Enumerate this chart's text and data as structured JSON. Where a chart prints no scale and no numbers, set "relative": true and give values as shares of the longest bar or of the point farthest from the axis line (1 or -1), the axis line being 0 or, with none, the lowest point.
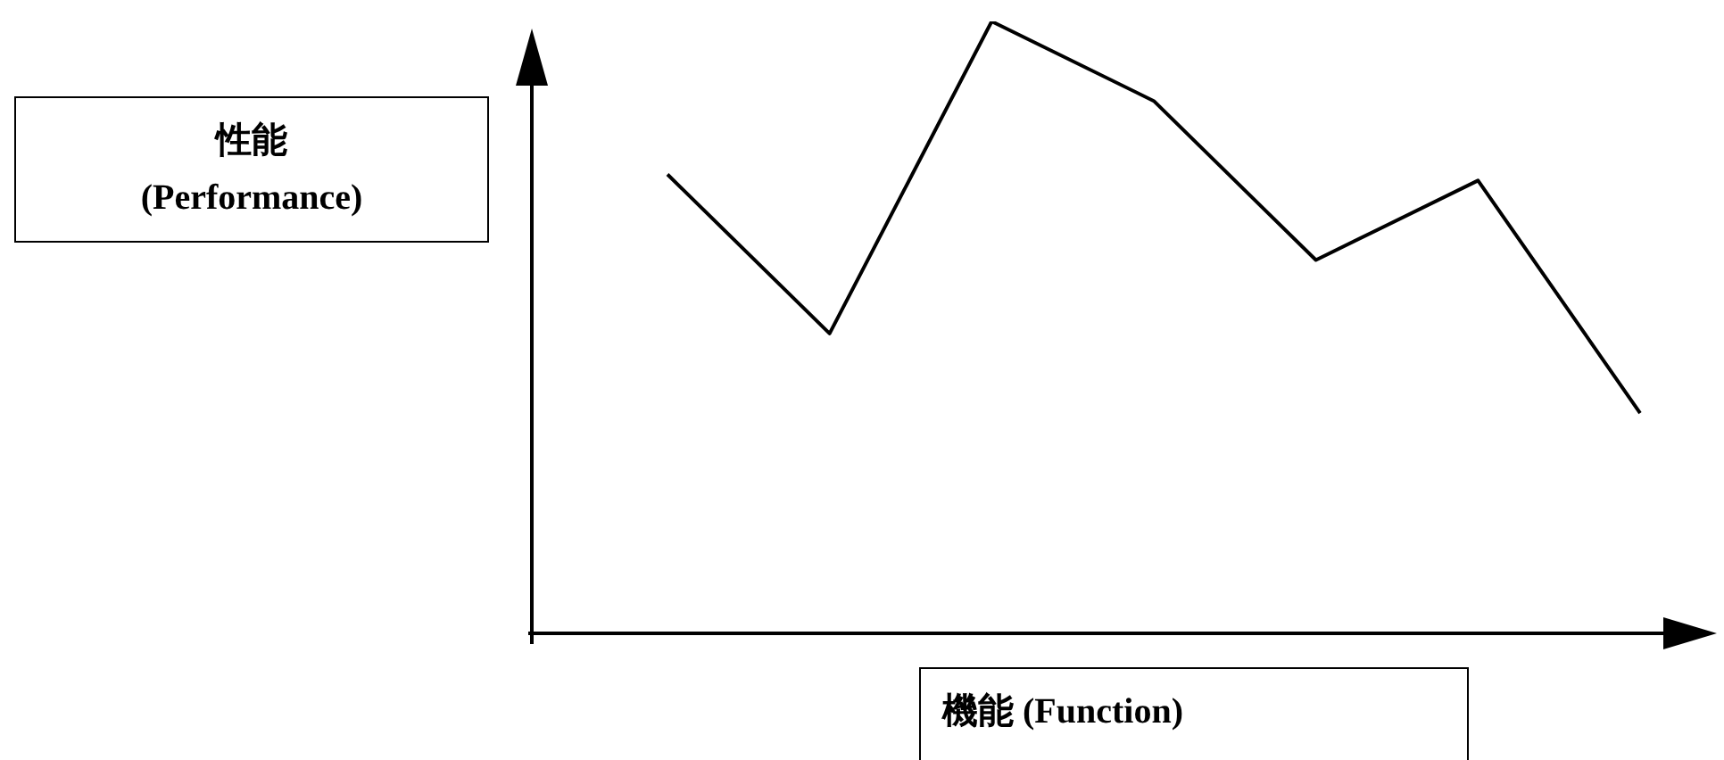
{
  "chart_data": {
    "type": "line",
    "relative": true,
    "xlabel": "機能 (Function)",
    "ylabel": "性能\n(Performance)",
    "categories": [
      null,
      null,
      null,
      null,
      null,
      null,
      null
    ],
    "series": [
      {
        "color": "#000000",
        "values": [
          0.75,
          0.49,
          1,
          0.87,
          0.61,
          0.74,
          0.36
        ]
      }
    ],
    "legend": false,
    "marker": "none",
    "line_style": "solid"
  }
}
